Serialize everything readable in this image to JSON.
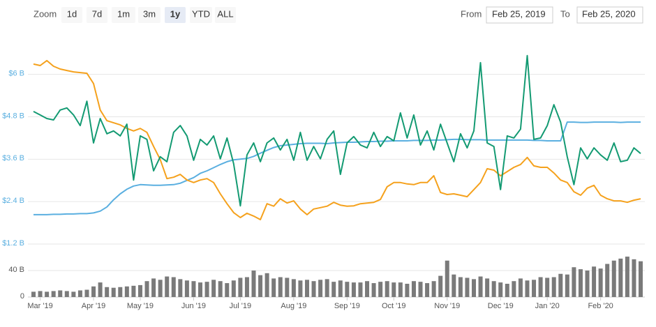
{
  "toolbar": {
    "zoom_label": "Zoom",
    "buttons": [
      "1d",
      "7d",
      "1m",
      "3m",
      "1y",
      "YTD",
      "ALL"
    ],
    "selected_button": "1y",
    "from_label": "From",
    "from": "Feb 25, 2019",
    "to_label": "To",
    "to": "Feb 25, 2020"
  },
  "chart_data": {
    "type": "line",
    "categories": [
      null,
      "Mar '19",
      null,
      null,
      null,
      null,
      null,
      null,
      null,
      "Apr '19",
      null,
      null,
      null,
      null,
      null,
      null,
      "May '19",
      null,
      null,
      null,
      null,
      null,
      null,
      null,
      "Jun '19",
      null,
      null,
      null,
      null,
      null,
      null,
      "Jul '19",
      null,
      null,
      null,
      null,
      null,
      null,
      null,
      "Aug '19",
      null,
      null,
      null,
      null,
      null,
      null,
      null,
      "Sep '19",
      null,
      null,
      null,
      null,
      null,
      null,
      "Oct '19",
      null,
      null,
      null,
      null,
      null,
      null,
      null,
      "Nov '19",
      null,
      null,
      null,
      null,
      null,
      null,
      null,
      "Dec '19",
      null,
      null,
      null,
      null,
      null,
      null,
      "Jan '20",
      null,
      null,
      null,
      null,
      null,
      null,
      null,
      "Feb '20",
      null,
      null,
      null,
      null,
      null,
      null
    ],
    "ylim": [
      1.2,
      6.9
    ],
    "yticks": [
      {
        "value": 1.2,
        "label": "$1.2 B"
      },
      {
        "value": 2.4,
        "label": "$2.4 B"
      },
      {
        "value": 3.6,
        "label": "$3.6 B"
      },
      {
        "value": 4.8,
        "label": "$4.8 B"
      },
      {
        "value": 6,
        "label": "$6 B"
      }
    ],
    "grid": true,
    "series": [
      {
        "color": "#5aafe0",
        "values": [
          2.03,
          2.03,
          2.03,
          2.04,
          2.04,
          2.05,
          2.05,
          2.06,
          2.06,
          2.08,
          2.13,
          2.25,
          2.45,
          2.62,
          2.75,
          2.84,
          2.88,
          2.87,
          2.86,
          2.86,
          2.87,
          2.88,
          2.92,
          3.0,
          3.08,
          3.2,
          3.27,
          3.36,
          3.45,
          3.53,
          3.58,
          3.6,
          3.62,
          3.68,
          3.77,
          3.85,
          3.93,
          3.98,
          4.0,
          4.02,
          4.04,
          4.05,
          4.05,
          4.05,
          4.04,
          4.06,
          4.07,
          4.08,
          4.08,
          4.09,
          4.1,
          4.1,
          4.11,
          4.11,
          4.12,
          4.12,
          4.12,
          4.13,
          4.13,
          4.13,
          4.14,
          4.14,
          4.15,
          4.16,
          4.16,
          4.15,
          4.15,
          4.15,
          4.14,
          4.14,
          4.14,
          4.14,
          4.14,
          4.14,
          4.14,
          4.13,
          4.13,
          4.12,
          4.12,
          4.12,
          4.65,
          4.65,
          4.64,
          4.64,
          4.65,
          4.65,
          4.65,
          4.65,
          4.64,
          4.65,
          4.65,
          4.65
        ]
      },
      {
        "color": "#f5a11c",
        "values": [
          6.29,
          6.25,
          6.39,
          6.23,
          6.15,
          6.11,
          6.07,
          6.05,
          6.03,
          5.74,
          4.99,
          4.69,
          4.63,
          4.57,
          4.47,
          4.4,
          4.47,
          4.36,
          3.96,
          3.59,
          3.05,
          3.09,
          3.17,
          3.01,
          2.94,
          3.01,
          3.05,
          2.94,
          2.62,
          2.34,
          2.09,
          1.95,
          2.07,
          1.99,
          1.89,
          2.34,
          2.27,
          2.48,
          2.36,
          2.42,
          2.19,
          2.03,
          2.19,
          2.23,
          2.27,
          2.38,
          2.3,
          2.27,
          2.28,
          2.34,
          2.36,
          2.38,
          2.46,
          2.82,
          2.94,
          2.94,
          2.9,
          2.88,
          2.94,
          2.94,
          3.13,
          2.66,
          2.6,
          2.62,
          2.58,
          2.54,
          2.74,
          2.94,
          3.33,
          3.29,
          3.13,
          3.25,
          3.37,
          3.45,
          3.65,
          3.41,
          3.37,
          3.37,
          3.21,
          3.01,
          2.94,
          2.68,
          2.58,
          2.78,
          2.86,
          2.58,
          2.48,
          2.42,
          2.42,
          2.38,
          2.44,
          2.48
        ]
      },
      {
        "color": "#139a72",
        "values": [
          4.95,
          4.85,
          4.75,
          4.71,
          4.99,
          5.05,
          4.85,
          4.55,
          5.24,
          4.06,
          4.75,
          4.32,
          4.4,
          4.26,
          4.59,
          3.01,
          4.26,
          4.16,
          3.27,
          3.67,
          3.53,
          4.36,
          4.55,
          4.26,
          3.57,
          4.16,
          4.0,
          4.26,
          3.61,
          4.2,
          3.47,
          2.28,
          3.72,
          4.06,
          3.53,
          4.06,
          4.2,
          3.86,
          4.16,
          3.57,
          4.36,
          3.57,
          3.96,
          3.61,
          4.16,
          4.4,
          3.17,
          4.06,
          4.24,
          4.0,
          3.92,
          4.36,
          3.96,
          4.24,
          4.12,
          4.91,
          4.2,
          4.85,
          4.0,
          4.4,
          3.86,
          4.59,
          4.06,
          3.53,
          4.32,
          3.92,
          4.4,
          6.33,
          4.06,
          3.96,
          2.74,
          4.26,
          4.2,
          4.45,
          6.53,
          4.16,
          4.2,
          4.55,
          5.14,
          4.65,
          3.67,
          2.88,
          3.92,
          3.61,
          3.92,
          3.72,
          3.57,
          4.06,
          3.53,
          3.57,
          3.92,
          3.76
        ]
      }
    ],
    "volume": {
      "type": "bar",
      "color": "#7a7a7a",
      "ylim": [
        0,
        73.7
      ],
      "yticks": [
        0,
        {
          "value": 40,
          "label": "40 B"
        }
      ],
      "values": [
        8,
        9,
        8,
        9,
        10,
        9,
        8,
        10,
        11,
        16,
        22,
        15,
        14,
        15,
        16,
        17,
        18,
        24,
        28,
        26,
        31,
        30,
        27,
        25,
        24,
        22,
        23,
        26,
        24,
        21,
        25,
        29,
        30,
        40,
        33,
        36,
        28,
        30,
        29,
        27,
        25,
        26,
        24,
        26,
        27,
        23,
        25,
        23,
        22,
        22,
        24,
        21,
        23,
        24,
        22,
        22,
        20,
        24,
        23,
        21,
        24,
        32,
        55,
        34,
        30,
        29,
        27,
        31,
        28,
        24,
        22,
        20,
        24,
        28,
        25,
        26,
        30,
        29,
        30,
        35,
        34,
        45,
        42,
        40,
        46,
        43,
        50,
        55,
        58,
        61,
        57,
        54
      ]
    }
  }
}
